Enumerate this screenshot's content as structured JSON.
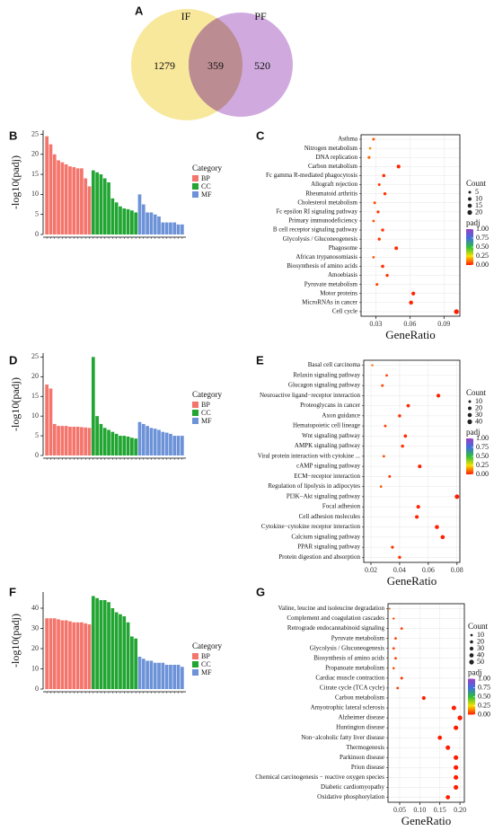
{
  "chart_data": [
    {
      "type": "venn",
      "panel": "A",
      "sets": [
        {
          "name": "IF",
          "color": "#f7e48a"
        },
        {
          "name": "PF",
          "color": "#c89bd8"
        }
      ],
      "values": [
        1279,
        359,
        520
      ]
    },
    {
      "type": "bar",
      "panel": "B",
      "ylabel": "-log10(padj)",
      "legend_title": "Category",
      "ylim": [
        0,
        26
      ],
      "yticks": [
        0,
        5,
        10,
        15,
        20,
        25
      ],
      "series": [
        {
          "name": "BP",
          "color": "#f4756c",
          "values": [
            24.5,
            22.5,
            20,
            18.5,
            18,
            17.5,
            17,
            16.8,
            16.5,
            16.5,
            14,
            12
          ]
        },
        {
          "name": "CC",
          "color": "#22a532",
          "values": [
            16,
            15.5,
            15,
            14,
            13,
            9,
            8,
            7,
            6.5,
            6.3,
            6,
            5.5
          ]
        },
        {
          "name": "MF",
          "color": "#6d92d8",
          "values": [
            10,
            7.5,
            5.5,
            5.5,
            5,
            4.5,
            3,
            3,
            3,
            3,
            2.5,
            2.5
          ]
        }
      ]
    },
    {
      "type": "dot",
      "panel": "C",
      "xlabel": "GeneRatio",
      "categories": [
        "Asthma",
        "Nitrogen metabolism",
        "DNA replication",
        "Carbon metabolism",
        "Fc gamma R-mediated phagocytosis",
        "Allograft rejection",
        "Rheumatoid arthritis",
        "Cholesterol metabolism",
        "Fc epsilon RI signaling pathway",
        "Primary immunodeficiency",
        "B cell receptor signaling pathway",
        "Glycolysis / Gluconeogenesis",
        "Phagosome",
        "African trypanosomiasis",
        "Biosynthesis of amino acids",
        "Amoebiasis",
        "Pyruvate metabolism",
        "Motor proteins",
        "MicroRNAs in cancer",
        "Cell cycle"
      ],
      "x": [
        0.028,
        0.025,
        0.024,
        0.05,
        0.037,
        0.033,
        0.038,
        0.029,
        0.032,
        0.028,
        0.036,
        0.033,
        0.048,
        0.028,
        0.036,
        0.04,
        0.031,
        0.063,
        0.061,
        0.101
      ],
      "counts": [
        5,
        4,
        6,
        12,
        8,
        5,
        7,
        5,
        6,
        4,
        7,
        7,
        10,
        4,
        8,
        7,
        5,
        12,
        14,
        21
      ],
      "padj": [
        0.08,
        0.15,
        0.1,
        0.01,
        0.03,
        0.04,
        0.03,
        0.06,
        0.04,
        0.07,
        0.03,
        0.04,
        0.02,
        0.08,
        0.03,
        0.03,
        0.05,
        0.01,
        0.01,
        0.001
      ],
      "xlim": [
        0.017,
        0.104
      ],
      "xticks": [
        0.03,
        0.06,
        0.09
      ],
      "grid": true,
      "size_legend": {
        "title": "Count",
        "values": [
          5,
          10,
          15,
          20
        ]
      },
      "color_legend": {
        "title": "padj",
        "lim": [
          0,
          1
        ],
        "ticks": [
          {
            "value": 1,
            "label": "1.00"
          },
          0.75,
          {
            "value": 0.5,
            "label": "0.50"
          },
          0.25,
          {
            "value": 0,
            "label": "0.00"
          }
        ]
      }
    },
    {
      "type": "bar",
      "panel": "D",
      "ylabel": "-log10(padj)",
      "legend_title": "Category",
      "ylim": [
        0,
        26
      ],
      "yticks": [
        0,
        5,
        10,
        15,
        20,
        25
      ],
      "series": [
        {
          "name": "BP",
          "color": "#f4756c",
          "values": [
            18,
            17,
            8,
            7.5,
            7.5,
            7.5,
            7.3,
            7.3,
            7.3,
            7.2,
            7.1,
            7
          ]
        },
        {
          "name": "CC",
          "color": "#22a532",
          "values": [
            25,
            10,
            8,
            7,
            6.5,
            6,
            5.5,
            5,
            5,
            4.8,
            4.5,
            4.3
          ]
        },
        {
          "name": "MF",
          "color": "#6d92d8",
          "values": [
            8.5,
            8,
            7.5,
            7,
            6.8,
            6.5,
            6,
            5.8,
            5.5,
            5,
            5,
            5
          ]
        }
      ]
    },
    {
      "type": "dot",
      "panel": "E",
      "xlabel": "GeneRatio",
      "categories": [
        "Basal cell carcinoma",
        "Relaxin signaling pathway",
        "Glucagon signaling pathway",
        "Neuroactive ligand−receptor interaction",
        "Proteoglycans in cancer",
        "Axon guidance",
        "Hematopoietic cell lineage",
        "Wnt signaling pathway",
        "AMPK signaling pathway",
        "Viral protein interaction with cytokine ...",
        "cAMP signaling pathway",
        "ECM−receptor interaction",
        "Regulation of lipolysis in adipocytes",
        "PI3K−Akt signaling pathway",
        "Focal adhesion",
        "Cell adhesion molecules",
        "Cytokine−cytokine receptor interaction",
        "Calcium signaling pathway",
        "PPAR signaling pathway",
        "Protein digestion and absorption"
      ],
      "x": [
        0.021,
        0.031,
        0.028,
        0.067,
        0.046,
        0.04,
        0.03,
        0.044,
        0.042,
        0.029,
        0.054,
        0.033,
        0.027,
        0.08,
        0.053,
        0.052,
        0.066,
        0.07,
        0.035,
        0.04
      ],
      "counts": [
        5,
        8,
        10,
        25,
        18,
        15,
        9,
        17,
        15,
        8,
        22,
        10,
        7,
        35,
        22,
        22,
        28,
        30,
        12,
        14
      ],
      "padj": [
        0.1,
        0.05,
        0.06,
        0.01,
        0.02,
        0.03,
        0.05,
        0.02,
        0.03,
        0.06,
        0.01,
        0.04,
        0.07,
        0.001,
        0.01,
        0.01,
        0.005,
        0.005,
        0.03,
        0.03
      ],
      "xlim": [
        0.015,
        0.082
      ],
      "xticks": [
        0.02,
        0.04,
        0.06,
        0.08
      ],
      "grid": true,
      "size_legend": {
        "title": "Count",
        "values": [
          10,
          20,
          30,
          40
        ]
      },
      "color_legend": {
        "title": "padj",
        "lim": [
          0,
          1
        ],
        "ticks": [
          {
            "value": 1,
            "label": "1.00"
          },
          0.75,
          {
            "value": 0.5,
            "label": "0.50"
          },
          0.25,
          {
            "value": 0,
            "label": "0.00"
          }
        ]
      }
    },
    {
      "type": "bar",
      "panel": "F",
      "ylabel": "-log10(padj)",
      "legend_title": "Category",
      "ylim": [
        0,
        48
      ],
      "yticks": [
        0,
        10,
        20,
        30,
        40
      ],
      "series": [
        {
          "name": "BP",
          "color": "#f4756c",
          "values": [
            35,
            35,
            35,
            34.5,
            34,
            34,
            33.5,
            33,
            33,
            33,
            32.5,
            32
          ]
        },
        {
          "name": "CC",
          "color": "#22a532",
          "values": [
            46,
            45,
            44,
            44,
            43,
            40,
            38,
            37,
            36,
            33,
            26,
            25
          ]
        },
        {
          "name": "MF",
          "color": "#6d92d8",
          "values": [
            16,
            15,
            14,
            14,
            13,
            13,
            13,
            12,
            12,
            12,
            12,
            11
          ]
        }
      ]
    },
    {
      "type": "dot",
      "panel": "G",
      "xlabel": "GeneRatio",
      "categories": [
        "Valine, leucine and isoleucine degradation",
        "Complement and coagulation cascades",
        "Retrograde endocannabinoid signaling",
        "Pyruvate metabolism",
        "Glycolysis / Gluconeogenesis",
        "Biosynthesis of amino acids",
        "Propanoate metabolism",
        "Cardiac muscle contraction",
        "Citrate cycle (TCA cycle)",
        "Carbon metabolism",
        "Amyotrophic lateral sclerosis",
        "Alzheimer disease",
        "Huntington disease",
        "Non−alcoholic fatty liver disease",
        "Thermogenesis",
        "Parkinson disease",
        "Prion disease",
        "Chemical carcinogenesis − reactive oxygen species",
        "Diabetic cardiomyopathy",
        "Oxidative phosphorylation"
      ],
      "x": [
        0.025,
        0.035,
        0.055,
        0.04,
        0.035,
        0.04,
        0.035,
        0.055,
        0.045,
        0.11,
        0.185,
        0.2,
        0.19,
        0.15,
        0.17,
        0.19,
        0.19,
        0.19,
        0.19,
        0.17
      ],
      "counts": [
        4,
        7,
        10,
        10,
        10,
        10,
        8,
        12,
        10,
        30,
        45,
        52,
        48,
        40,
        45,
        48,
        48,
        48,
        48,
        40
      ],
      "padj": [
        0.1,
        0.06,
        0.04,
        0.05,
        0.05,
        0.04,
        0.06,
        0.03,
        0.04,
        0.01,
        0.001,
        0.001,
        0.001,
        0.005,
        0.003,
        0.001,
        0.001,
        0.001,
        0.001,
        0.002
      ],
      "xlim": [
        0.021,
        0.211
      ],
      "xticks": [
        0.05,
        {
          "value": 0.1,
          "label": "0.10"
        },
        0.15,
        {
          "value": 0.2,
          "label": "0.20"
        }
      ],
      "grid": true,
      "size_legend": {
        "title": "Count",
        "values": [
          10,
          20,
          30,
          40,
          50
        ]
      },
      "color_legend": {
        "title": "padj",
        "lim": [
          0,
          1
        ],
        "ticks": [
          {
            "value": 1,
            "label": "1.00"
          },
          0.75,
          {
            "value": 0.5,
            "label": "0.50"
          },
          0.25,
          {
            "value": 0,
            "label": "0.00"
          }
        ]
      }
    }
  ]
}
